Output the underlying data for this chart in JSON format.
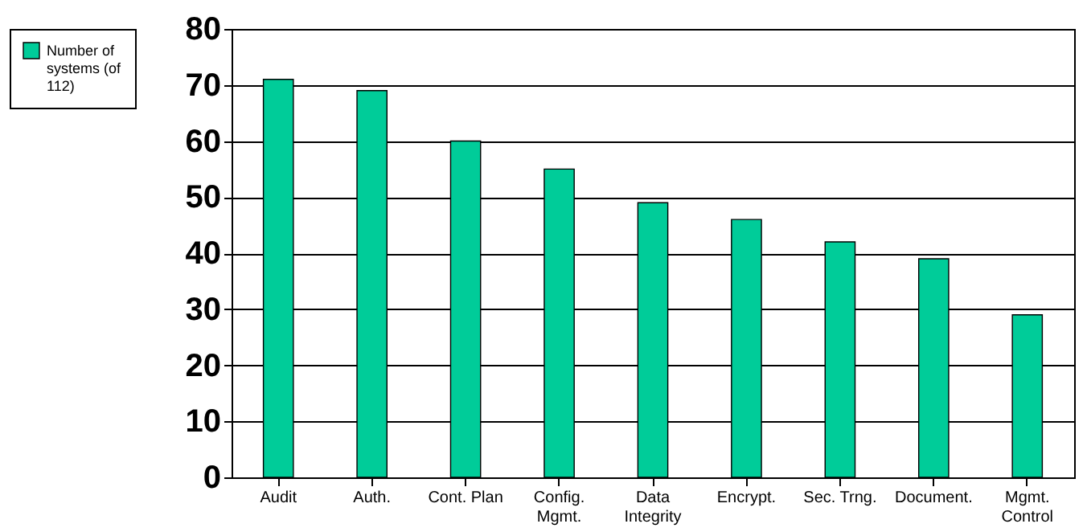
{
  "chart_data": {
    "type": "bar",
    "categories": [
      "Audit",
      "Auth.",
      "Cont. Plan",
      "Config.\nMgmt.",
      "Data\nIntegrity",
      "Encrypt.",
      "Sec. Trng.",
      "Document.",
      "Mgmt.\nControl"
    ],
    "series": [
      {
        "name": "Number of systems (of 112)",
        "color": "#00cc99",
        "values": [
          71,
          69,
          60,
          55,
          49,
          46,
          42,
          39,
          29
        ]
      }
    ],
    "ylim": [
      0,
      80
    ],
    "yticks": [
      0,
      10,
      20,
      30,
      40,
      50,
      60,
      70,
      80
    ],
    "grid": "y",
    "legend": "left"
  }
}
